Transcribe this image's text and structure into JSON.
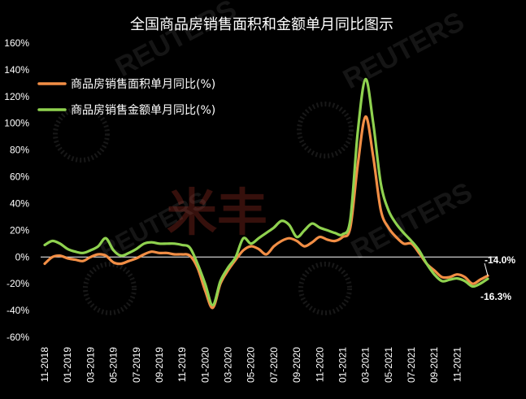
{
  "chart_data": {
    "type": "line",
    "title": "全国商品房销售面积和金额单月同比图示",
    "xlabel": "",
    "ylabel": "",
    "ylim": [
      -60,
      160
    ],
    "ytick_labels": [
      "160%",
      "140%",
      "120%",
      "100%",
      "80%",
      "60%",
      "40%",
      "20%",
      "0%",
      "-20%",
      "-40%",
      "-60%"
    ],
    "xtick_labels": [
      "11-2018",
      "01-2019",
      "03-2019",
      "05-2019",
      "07-2019",
      "09-2019",
      "11-2019",
      "01-2020",
      "03-2020",
      "05-2020",
      "07-2020",
      "09-2020",
      "11-2020",
      "01-2021",
      "03-2021",
      "05-2021",
      "07-2021",
      "09-2021",
      "11-2021"
    ],
    "legend_position": "top-left",
    "grid": false,
    "series": [
      {
        "name": "商品房销售面积单月同比(%)",
        "color": "#f28e45",
        "points": [
          [
            0,
            -5
          ],
          [
            0.5,
            0
          ],
          [
            1,
            1
          ],
          [
            1.5,
            -1
          ],
          [
            2,
            -2
          ],
          [
            2.5,
            -3
          ],
          [
            3,
            0
          ],
          [
            3.5,
            2
          ],
          [
            4,
            1
          ],
          [
            4.5,
            -4
          ],
          [
            5,
            -5
          ],
          [
            5.5,
            -3
          ],
          [
            6,
            -1
          ],
          [
            6.5,
            2
          ],
          [
            7,
            4
          ],
          [
            7.5,
            3
          ],
          [
            8,
            3
          ],
          [
            8.5,
            2
          ],
          [
            9,
            2
          ],
          [
            9.5,
            1
          ],
          [
            10,
            -8
          ],
          [
            10.5,
            -25
          ],
          [
            11,
            -38
          ],
          [
            11.5,
            -20
          ],
          [
            12,
            -10
          ],
          [
            12.5,
            -2
          ],
          [
            13,
            5
          ],
          [
            13.5,
            8
          ],
          [
            14,
            6
          ],
          [
            14.5,
            2
          ],
          [
            15,
            8
          ],
          [
            15.5,
            12
          ],
          [
            16,
            14
          ],
          [
            16.5,
            12
          ],
          [
            17,
            8
          ],
          [
            17.5,
            11
          ],
          [
            18,
            15
          ],
          [
            18.5,
            13
          ],
          [
            19,
            12
          ],
          [
            19.5,
            15
          ],
          [
            20,
            22
          ],
          [
            20.5,
            70
          ],
          [
            21,
            105
          ],
          [
            21.5,
            75
          ],
          [
            22,
            35
          ],
          [
            22.5,
            22
          ],
          [
            23,
            15
          ],
          [
            23.5,
            10
          ],
          [
            24,
            10
          ],
          [
            24.5,
            3
          ],
          [
            25,
            -5
          ],
          [
            25.5,
            -10
          ],
          [
            26,
            -15
          ],
          [
            26.5,
            -15
          ],
          [
            27,
            -13
          ],
          [
            27.5,
            -15
          ],
          [
            28,
            -20
          ],
          [
            28.5,
            -17
          ],
          [
            29,
            -14
          ]
        ]
      },
      {
        "name": "商品房销售金额单月同比(%)",
        "color": "#8fd24f",
        "points": [
          [
            0,
            9
          ],
          [
            0.5,
            12
          ],
          [
            1,
            10
          ],
          [
            1.5,
            6
          ],
          [
            2,
            4
          ],
          [
            2.5,
            3
          ],
          [
            3,
            5
          ],
          [
            3.5,
            8
          ],
          [
            4,
            14
          ],
          [
            4.5,
            5
          ],
          [
            5,
            1
          ],
          [
            5.5,
            3
          ],
          [
            6,
            6
          ],
          [
            6.5,
            10
          ],
          [
            7,
            11
          ],
          [
            7.5,
            10
          ],
          [
            8,
            10
          ],
          [
            8.5,
            10
          ],
          [
            9,
            9
          ],
          [
            9.5,
            7
          ],
          [
            10,
            -5
          ],
          [
            10.5,
            -20
          ],
          [
            11,
            -36
          ],
          [
            11.5,
            -18
          ],
          [
            12,
            -8
          ],
          [
            12.5,
            0
          ],
          [
            13,
            14
          ],
          [
            13.5,
            10
          ],
          [
            14,
            14
          ],
          [
            14.5,
            18
          ],
          [
            15,
            22
          ],
          [
            15.5,
            27
          ],
          [
            16,
            24
          ],
          [
            16.5,
            15
          ],
          [
            17,
            20
          ],
          [
            17.5,
            25
          ],
          [
            18,
            22
          ],
          [
            18.5,
            20
          ],
          [
            19,
            18
          ],
          [
            19.5,
            17
          ],
          [
            20,
            28
          ],
          [
            20.5,
            95
          ],
          [
            21,
            133
          ],
          [
            21.5,
            100
          ],
          [
            22,
            55
          ],
          [
            22.5,
            35
          ],
          [
            23,
            25
          ],
          [
            23.5,
            18
          ],
          [
            24,
            12
          ],
          [
            24.5,
            5
          ],
          [
            25,
            -5
          ],
          [
            25.5,
            -13
          ],
          [
            26,
            -18
          ],
          [
            26.5,
            -17
          ],
          [
            27,
            -16
          ],
          [
            27.5,
            -18
          ],
          [
            28,
            -22
          ],
          [
            28.5,
            -20
          ],
          [
            29,
            -16.3
          ]
        ]
      }
    ],
    "annotations": [
      {
        "text": "-14.0%",
        "color": "#8fd24f"
      },
      {
        "text": "-16.3%",
        "color": "#ffffff"
      }
    ]
  },
  "watermarks": {
    "reuters": "REUTERS",
    "brand": "米丰",
    "brand_color": "#c0392b"
  }
}
